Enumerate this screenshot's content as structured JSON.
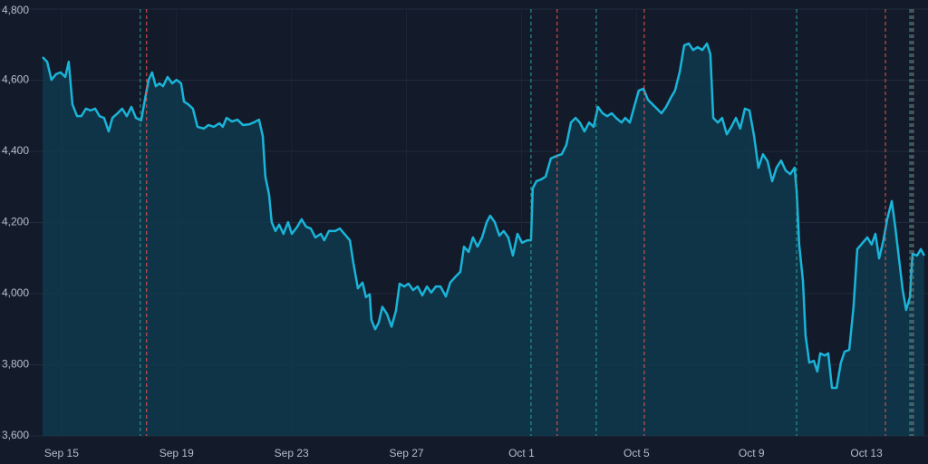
{
  "chart_data": {
    "type": "area",
    "color": "#1ab4d8",
    "fill": "#0f3a4c",
    "grid": true,
    "xlim": [
      12.86,
      45.14
    ],
    "ylim": [
      3600,
      4800
    ],
    "xticks": [
      {
        "value": 15,
        "label": "Sep 15"
      },
      {
        "value": 19,
        "label": "Sep 19"
      },
      {
        "value": 23,
        "label": "Sep 23"
      },
      {
        "value": 27,
        "label": "Sep 27"
      },
      {
        "value": 31,
        "label": "Oct 1"
      },
      {
        "value": 35,
        "label": "Oct 5"
      },
      {
        "value": 39,
        "label": "Oct 9"
      },
      {
        "value": 43,
        "label": "Oct 13"
      }
    ],
    "yticks": [
      {
        "value": 3600,
        "label": "3,600"
      },
      {
        "value": 3800,
        "label": "3,800"
      },
      {
        "value": 4000,
        "label": "4,000"
      },
      {
        "value": 4200,
        "label": "4,200"
      },
      {
        "value": 4400,
        "label": "4,400"
      },
      {
        "value": 4600,
        "label": "4,600"
      },
      {
        "value": 4800,
        "label": "4,800"
      }
    ],
    "x": [
      14.34,
      14.5,
      14.65,
      14.81,
      14.97,
      15.13,
      15.25,
      15.38,
      15.54,
      15.69,
      15.85,
      16.01,
      16.17,
      16.32,
      16.48,
      16.64,
      16.77,
      16.95,
      17.11,
      17.27,
      17.43,
      17.59,
      17.77,
      17.9,
      18.03,
      18.15,
      18.28,
      18.41,
      18.53,
      18.69,
      18.85,
      19.0,
      19.16,
      19.26,
      19.41,
      19.57,
      19.73,
      19.95,
      20.11,
      20.3,
      20.49,
      20.61,
      20.74,
      20.93,
      21.12,
      21.31,
      21.53,
      21.68,
      21.87,
      22.0,
      22.09,
      22.22,
      22.31,
      22.44,
      22.57,
      22.72,
      22.88,
      23.01,
      23.2,
      23.35,
      23.51,
      23.67,
      23.83,
      24.02,
      24.14,
      24.3,
      24.52,
      24.68,
      24.84,
      25.03,
      25.15,
      25.31,
      25.47,
      25.59,
      25.72,
      25.78,
      25.91,
      26.03,
      26.16,
      26.32,
      26.48,
      26.63,
      26.76,
      26.92,
      27.07,
      27.23,
      27.39,
      27.55,
      27.71,
      27.86,
      28.02,
      28.18,
      28.37,
      28.52,
      28.71,
      28.87,
      29.0,
      29.16,
      29.31,
      29.47,
      29.63,
      29.79,
      29.91,
      30.07,
      30.23,
      30.38,
      30.54,
      30.7,
      30.86,
      31.02,
      31.2,
      31.33,
      31.39,
      31.52,
      31.68,
      31.84,
      32.02,
      32.21,
      32.4,
      32.56,
      32.72,
      32.88,
      33.03,
      33.19,
      33.35,
      33.51,
      33.66,
      33.82,
      33.98,
      34.14,
      34.29,
      34.48,
      34.61,
      34.77,
      34.92,
      35.08,
      35.24,
      35.4,
      35.56,
      35.71,
      35.87,
      36.03,
      36.19,
      36.34,
      36.5,
      36.66,
      36.82,
      36.97,
      37.13,
      37.29,
      37.45,
      37.57,
      37.67,
      37.83,
      37.98,
      38.14,
      38.3,
      38.46,
      38.61,
      38.77,
      38.93,
      39.09,
      39.24,
      39.4,
      39.56,
      39.72,
      39.87,
      40.03,
      40.19,
      40.35,
      40.5,
      40.57,
      40.66,
      40.79,
      40.88,
      41.01,
      41.17,
      41.29,
      41.39,
      41.55,
      41.67,
      41.8,
      41.96,
      42.11,
      42.24,
      42.4,
      42.55,
      42.68,
      42.87,
      43.03,
      43.18,
      43.31,
      43.44,
      43.59,
      43.72,
      43.88,
      44.0,
      44.13,
      44.26,
      44.38,
      44.51,
      44.6,
      44.76,
      44.89,
      45.01
    ],
    "values": [
      4665,
      4652,
      4601,
      4617,
      4622,
      4609,
      4652,
      4532,
      4499,
      4499,
      4520,
      4515,
      4520,
      4499,
      4494,
      4456,
      4494,
      4507,
      4520,
      4499,
      4525,
      4494,
      4487,
      4545,
      4601,
      4622,
      4583,
      4591,
      4583,
      4609,
      4591,
      4601,
      4591,
      4540,
      4532,
      4520,
      4469,
      4464,
      4474,
      4469,
      4479,
      4469,
      4494,
      4484,
      4489,
      4474,
      4476,
      4481,
      4489,
      4443,
      4329,
      4278,
      4201,
      4176,
      4194,
      4168,
      4201,
      4168,
      4188,
      4209,
      4188,
      4183,
      4158,
      4168,
      4150,
      4176,
      4176,
      4183,
      4168,
      4150,
      4087,
      4015,
      4031,
      3990,
      3998,
      3926,
      3900,
      3918,
      3963,
      3943,
      3907,
      3951,
      4028,
      4020,
      4028,
      4010,
      4020,
      3995,
      4020,
      4003,
      4020,
      4020,
      3992,
      4031,
      4048,
      4061,
      4132,
      4117,
      4158,
      4132,
      4158,
      4201,
      4219,
      4201,
      4163,
      4176,
      4158,
      4107,
      4168,
      4143,
      4150,
      4150,
      4296,
      4316,
      4321,
      4329,
      4380,
      4387,
      4392,
      4418,
      4481,
      4494,
      4481,
      4456,
      4481,
      4469,
      4525,
      4507,
      4499,
      4507,
      4494,
      4481,
      4494,
      4481,
      4525,
      4571,
      4576,
      4545,
      4532,
      4520,
      4507,
      4525,
      4550,
      4571,
      4622,
      4698,
      4703,
      4685,
      4693,
      4685,
      4703,
      4673,
      4494,
      4481,
      4494,
      4448,
      4469,
      4494,
      4464,
      4520,
      4515,
      4443,
      4354,
      4392,
      4372,
      4316,
      4354,
      4374,
      4346,
      4336,
      4354,
      4290,
      4138,
      4036,
      3883,
      3806,
      3811,
      3781,
      3832,
      3826,
      3832,
      3735,
      3735,
      3806,
      3837,
      3842,
      3963,
      4125,
      4143,
      4158,
      4138,
      4168,
      4099,
      4150,
      4209,
      4260,
      4188,
      4099,
      4010,
      3954,
      3990,
      4112,
      4107,
      4125,
      4107
    ],
    "signals": [
      {
        "x": 17.74,
        "color": "#26a69a"
      },
      {
        "x": 17.96,
        "color": "#ef5350"
      },
      {
        "x": 31.33,
        "color": "#26a69a"
      },
      {
        "x": 32.24,
        "color": "#ef5350"
      },
      {
        "x": 33.6,
        "color": "#26a69a"
      },
      {
        "x": 35.27,
        "color": "#ef5350"
      },
      {
        "x": 40.57,
        "color": "#26a69a"
      },
      {
        "x": 43.66,
        "color": "#ef5350"
      },
      {
        "x": 44.51,
        "color": "#26a69a"
      },
      {
        "x": 44.57,
        "color": "#ef5350"
      },
      {
        "x": 44.63,
        "color": "#26a69a"
      }
    ]
  }
}
